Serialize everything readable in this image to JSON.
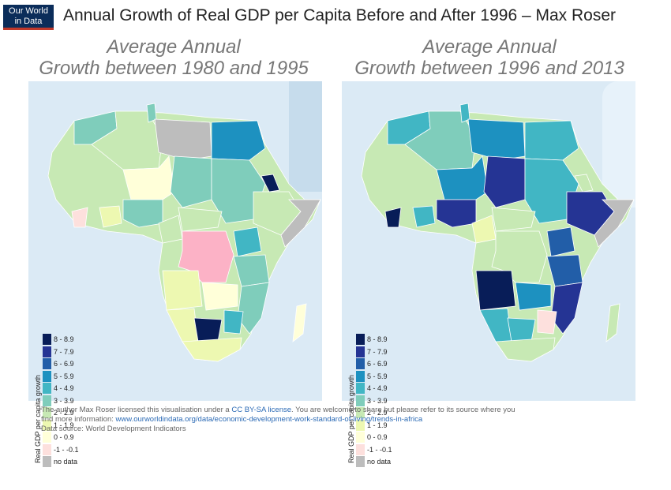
{
  "logo": {
    "line1": "Our World",
    "line2": "in Data"
  },
  "title": "Annual Growth of Real GDP per Capita Before and After 1996 – Max Roser",
  "panels": [
    {
      "title_line1": "Average Annual",
      "title_line2": "Growth between 1980 and 1995"
    },
    {
      "title_line1": "Average Annual",
      "title_line2": "Growth between 1996 and 2013"
    }
  ],
  "legend": {
    "title": "Real GDP per capita growth",
    "items": [
      {
        "label": "8 - 8.9",
        "color": "#081d58"
      },
      {
        "label": "7 - 7.9",
        "color": "#253494"
      },
      {
        "label": "6 - 6.9",
        "color": "#225ea8"
      },
      {
        "label": "5 - 5.9",
        "color": "#1d91c0"
      },
      {
        "label": "4 - 4.9",
        "color": "#41b6c4"
      },
      {
        "label": "3 - 3.9",
        "color": "#7fcdbb"
      },
      {
        "label": "2 - 2.9",
        "color": "#c7e9b4"
      },
      {
        "label": "1 - 1.9",
        "color": "#edf8b1"
      },
      {
        "label": "0 - 0.9",
        "color": "#ffffd9"
      },
      {
        "label": "-1 - -0.1",
        "color": "#fde0dd"
      },
      {
        "label": "no data",
        "color": "#bdbdbd"
      }
    ]
  },
  "footer": {
    "line1_pre": "The author Max Roser licensed this visualisation under a ",
    "license_link": "CC BY-SA license",
    "line1_post": ". You are welcome to share but please refer to its source where you",
    "line2_pre": "find more information: ",
    "source_url": "www.ourworldindata.org/data/economic-development-work-standard-of-living/trends-in-africa",
    "line3": "Data source: World Development Indicators"
  }
}
